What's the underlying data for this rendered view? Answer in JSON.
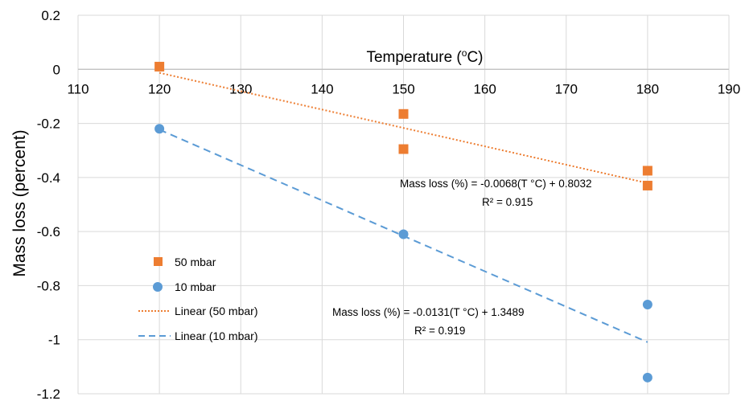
{
  "chart_data": {
    "type": "scatter",
    "xlabel": "Temperature (",
    "xlabel_sup": "o",
    "xlabel_suffix": "C)",
    "ylabel": "Mass loss (percent)",
    "xlim": [
      110,
      190
    ],
    "ylim": [
      -1.2,
      0.2
    ],
    "x_ticks": [
      "110",
      "120",
      "130",
      "140",
      "150",
      "160",
      "170",
      "180",
      "190"
    ],
    "y_ticks": [
      "0.2",
      "0",
      "-0.2",
      "-0.4",
      "-0.6",
      "-0.8",
      "-1",
      "-1.2"
    ],
    "grid": true,
    "legend_position": "left",
    "series": [
      {
        "name": "50 mbar",
        "marker": "square",
        "color": "#ED7D31",
        "points": [
          {
            "x": 120,
            "y": 0.01
          },
          {
            "x": 150,
            "y": -0.165
          },
          {
            "x": 150,
            "y": -0.295
          },
          {
            "x": 180,
            "y": -0.375
          },
          {
            "x": 180,
            "y": -0.43
          }
        ]
      },
      {
        "name": "10 mbar",
        "marker": "circle",
        "color": "#5B9BD5",
        "points": [
          {
            "x": 120,
            "y": -0.22
          },
          {
            "x": 150,
            "y": -0.61
          },
          {
            "x": 180,
            "y": -0.87
          },
          {
            "x": 180,
            "y": -1.14
          }
        ]
      }
    ],
    "trendlines": [
      {
        "name": "Linear (50 mbar)",
        "color": "#ED7D31",
        "style": "dotted",
        "slope": -0.0068,
        "intercept": 0.8032,
        "x_range": [
          120,
          180
        ],
        "equation": "Mass loss (%) = -0.0068(T °C) + 0.8032",
        "r2": "R² = 0.915"
      },
      {
        "name": "Linear (10 mbar)",
        "color": "#5B9BD5",
        "style": "dashed",
        "slope": -0.0131,
        "intercept": 1.3489,
        "x_range": [
          120,
          180
        ],
        "equation": "Mass loss (%) = -0.0131(T °C) + 1.3489",
        "r2": "R² = 0.919"
      }
    ]
  }
}
